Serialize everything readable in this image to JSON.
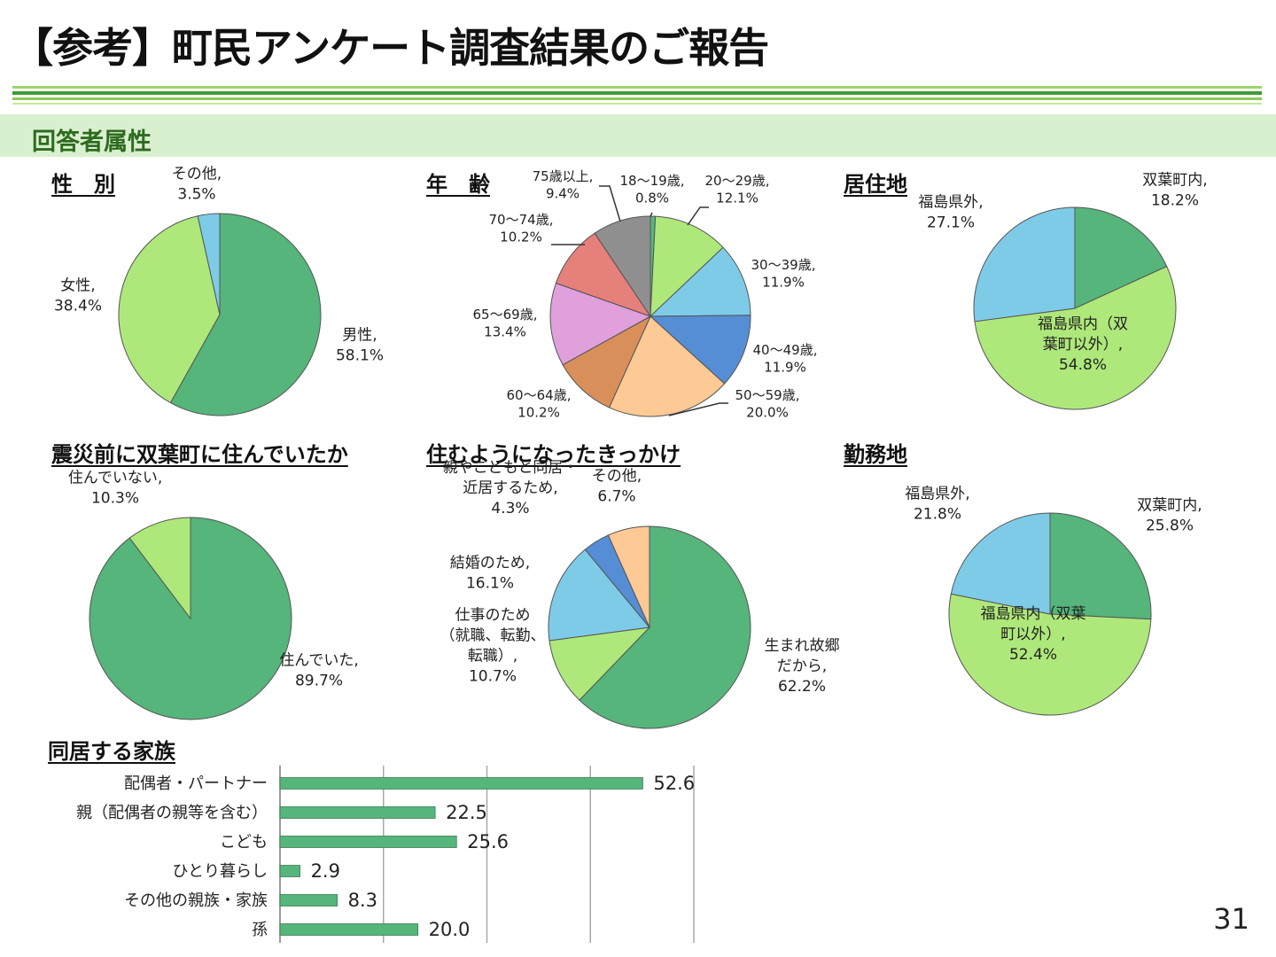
{
  "title": "【参考】町民アンケート調査結果のご報告",
  "section": "回答者属性",
  "page_number": "31",
  "colors": {
    "green": "#55b57b",
    "lightgreen": "#aee87a",
    "skyblue": "#7ecbe8",
    "blue": "#558ed5",
    "peach": "#fdc994",
    "brown": "#d98f5a",
    "pink": "#e0a0dc",
    "red": "#e6807a",
    "gray": "#8f8f8f",
    "bar": "#55b57b",
    "band": "#d9f0cf",
    "sectiontext": "#2e6b1f"
  },
  "chart_data": [
    {
      "type": "pie",
      "title": "性　別",
      "slices": [
        {
          "label": "男性",
          "value": 58.1,
          "text": [
            "男性,",
            "58.1%"
          ],
          "color": "#55b57b"
        },
        {
          "label": "女性",
          "value": 38.4,
          "text": [
            "女性,",
            "38.4%"
          ],
          "color": "#aee87a"
        },
        {
          "label": "その他",
          "value": 3.5,
          "text": [
            "その他,",
            "3.5%"
          ],
          "color": "#7ecbe8"
        }
      ]
    },
    {
      "type": "pie",
      "title": "年　齢",
      "slices": [
        {
          "label": "18～19歳",
          "value": 0.8,
          "text": [
            "18～19歳,",
            "0.8%"
          ],
          "color": "#55b57b"
        },
        {
          "label": "20～29歳",
          "value": 12.1,
          "text": [
            "20～29歳,",
            "12.1%"
          ],
          "color": "#aee87a"
        },
        {
          "label": "30～39歳",
          "value": 11.9,
          "text": [
            "30～39歳,",
            "11.9%"
          ],
          "color": "#7ecbe8"
        },
        {
          "label": "40～49歳",
          "value": 11.9,
          "text": [
            "40～49歳,",
            "11.9%"
          ],
          "color": "#558ed5"
        },
        {
          "label": "50～59歳",
          "value": 20.0,
          "text": [
            "50～59歳,",
            "20.0%"
          ],
          "color": "#fdc994"
        },
        {
          "label": "60～64歳",
          "value": 10.2,
          "text": [
            "60～64歳,",
            "10.2%"
          ],
          "color": "#d98f5a"
        },
        {
          "label": "65～69歳",
          "value": 13.4,
          "text": [
            "65～69歳,",
            "13.4%"
          ],
          "color": "#e0a0dc"
        },
        {
          "label": "70～74歳",
          "value": 10.2,
          "text": [
            "70～74歳,",
            "10.2%"
          ],
          "color": "#e6807a"
        },
        {
          "label": "75歳以上",
          "value": 9.4,
          "text": [
            "75歳以上,",
            "9.4%"
          ],
          "color": "#8f8f8f"
        }
      ]
    },
    {
      "type": "pie",
      "title": "居住地",
      "slices": [
        {
          "label": "双葉町内",
          "value": 18.2,
          "text": [
            "双葉町内,",
            "18.2%"
          ],
          "color": "#55b57b"
        },
        {
          "label": "福島県内（双葉町以外）",
          "value": 54.8,
          "text": [
            "福島県内（双",
            "葉町以外）,",
            "54.8%"
          ],
          "color": "#aee87a"
        },
        {
          "label": "福島県外",
          "value": 27.1,
          "text": [
            "福島県外,",
            "27.1%"
          ],
          "color": "#7ecbe8"
        }
      ]
    },
    {
      "type": "pie",
      "title": "震災前に双葉町に住んでいたか",
      "slices": [
        {
          "label": "住んでいた",
          "value": 89.7,
          "text": [
            "住んでいた,",
            "89.7%"
          ],
          "color": "#55b57b"
        },
        {
          "label": "住んでいない",
          "value": 10.3,
          "text": [
            "住んでいない,",
            "10.3%"
          ],
          "color": "#aee87a"
        }
      ]
    },
    {
      "type": "pie",
      "title": "住むようになったきっかけ",
      "slices": [
        {
          "label": "生まれ故郷だから",
          "value": 62.2,
          "text": [
            "生まれ故郷",
            "だから,",
            "62.2%"
          ],
          "color": "#55b57b"
        },
        {
          "label": "仕事のため（就職、転勤、転職）",
          "value": 10.7,
          "text": [
            "仕事のため",
            "（就職、転勤、",
            "転職）,",
            "10.7%"
          ],
          "color": "#aee87a"
        },
        {
          "label": "結婚のため",
          "value": 16.1,
          "text": [
            "結婚のため,",
            "16.1%"
          ],
          "color": "#7ecbe8"
        },
        {
          "label": "親やこどもと同居・近居するため",
          "value": 4.3,
          "text": [
            "親やこどもと同居・",
            "近居するため,",
            "4.3%"
          ],
          "color": "#558ed5"
        },
        {
          "label": "その他",
          "value": 6.7,
          "text": [
            "その他,",
            "6.7%"
          ],
          "color": "#fdc994"
        }
      ]
    },
    {
      "type": "pie",
      "title": "勤務地",
      "slices": [
        {
          "label": "双葉町内",
          "value": 25.8,
          "text": [
            "双葉町内,",
            "25.8%"
          ],
          "color": "#55b57b"
        },
        {
          "label": "福島県内（双葉町以外）",
          "value": 52.4,
          "text": [
            "福島県内（双葉",
            "町以外）,",
            "52.4%"
          ],
          "color": "#aee87a"
        },
        {
          "label": "福島県外",
          "value": 21.8,
          "text": [
            "福島県外,",
            "21.8%"
          ],
          "color": "#7ecbe8"
        }
      ]
    },
    {
      "type": "bar",
      "orientation": "horizontal",
      "title": "同居する家族",
      "categories": [
        "配偶者・パートナー",
        "親（配偶者の親等を含む）",
        "こども",
        "ひとり暮らし",
        "その他の親族・家族",
        "孫"
      ],
      "values": [
        52.6,
        22.5,
        25.6,
        2.9,
        8.3,
        20.0
      ],
      "value_labels": [
        "52.6",
        "22.5",
        "25.6",
        "2.9",
        "8.3",
        "20.0"
      ],
      "xlim": [
        0,
        60
      ],
      "grid": true
    }
  ]
}
